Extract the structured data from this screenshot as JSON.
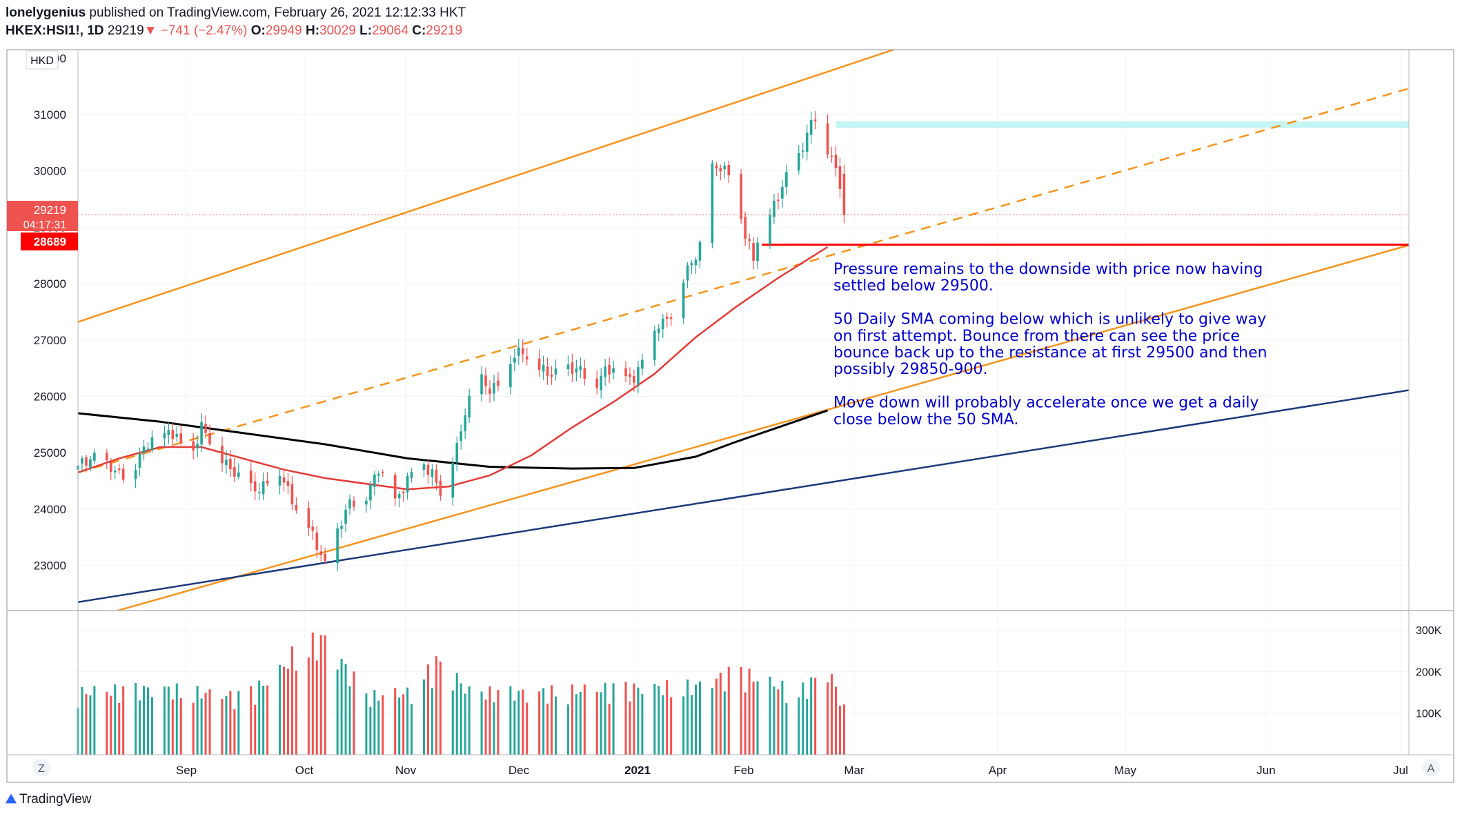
{
  "header": {
    "author": "lonelygenius",
    "published": "published on TradingView.com, February 26, 2021 12:12:33 HKT",
    "symbol": "HKEX:HSI1!, 1D",
    "last": "29219",
    "change_arrow": "▼",
    "change": "−741 (−2.47%)",
    "o_label": "O:",
    "o": "29949",
    "h_label": "H:",
    "h": "30029",
    "l_label": "L:",
    "l": "29064",
    "c_label": "C:",
    "c": "29219"
  },
  "currency": "HKD",
  "price_tags": {
    "last_price": "29219",
    "countdown": "04:17:31",
    "level": "28689"
  },
  "volume_axis_labels": [
    "300K",
    "200K",
    "100K"
  ],
  "footer": {
    "brand": "TradingView",
    "left_button": "Z",
    "right_button": "A"
  },
  "annotation": [
    "Pressure remains to the downside with price now having",
    "settled below 29500.",
    "",
    "50 Daily SMA coming below which is unlikely to give way",
    "on first attempt. Bounce from there can see the price",
    "bounce back up to the resistance at first 29500 and then",
    "possibly 29850-900.",
    "",
    "Move down will probably accelerate once we get a daily",
    "close below the 50 SMA."
  ],
  "colors": {
    "up": "#26a69a",
    "down": "#ef5350",
    "channel": "#f7931a",
    "support": "#1a3a7a",
    "sma50": "#e53935",
    "sma200": "#000000",
    "resistance_zone": "#c4f5f5",
    "annotation": "#0000d0",
    "level_line": "#ff0000"
  },
  "chart_data": {
    "type": "candlestick",
    "title": "HKEX:HSI1!, 1D",
    "y_ticks": [
      23000,
      24000,
      25000,
      26000,
      27000,
      28000,
      29000,
      30000,
      31000
    ],
    "x_ticks": [
      "Sep",
      "Oct",
      "Nov",
      "Dec",
      "2021",
      "Feb",
      "Mar",
      "Apr",
      "May",
      "Jun",
      "Jul"
    ],
    "ylim": [
      22200,
      32150
    ],
    "last_ohlc": {
      "open": 29949,
      "high": 30029,
      "low": 29064,
      "close": 29219
    },
    "close_path": [
      [
        0,
        24700
      ],
      [
        4,
        25000
      ],
      [
        9,
        24600
      ],
      [
        13,
        24700
      ],
      [
        18,
        25200
      ],
      [
        22,
        25400
      ],
      [
        27,
        24900
      ],
      [
        30,
        25500
      ],
      [
        33,
        25000
      ],
      [
        37,
        24800
      ],
      [
        41,
        24300
      ],
      [
        44,
        24400
      ],
      [
        48,
        24700
      ],
      [
        52,
        24200
      ],
      [
        55,
        23800
      ],
      [
        58,
        23300
      ],
      [
        60,
        23050
      ],
      [
        63,
        23600
      ],
      [
        66,
        24050
      ],
      [
        70,
        24300
      ],
      [
        73,
        24650
      ],
      [
        77,
        24200
      ],
      [
        80,
        24500
      ],
      [
        84,
        24800
      ],
      [
        86,
        24700
      ],
      [
        88,
        24300
      ],
      [
        90,
        24600
      ],
      [
        92,
        25100
      ],
      [
        94,
        25800
      ],
      [
        97,
        26300
      ],
      [
        100,
        26100
      ],
      [
        104,
        26500
      ],
      [
        108,
        26800
      ],
      [
        112,
        26500
      ],
      [
        115,
        26300
      ],
      [
        118,
        26600
      ],
      [
        122,
        26400
      ],
      [
        125,
        26200
      ],
      [
        128,
        26500
      ],
      [
        132,
        26300
      ],
      [
        135,
        26400
      ],
      [
        138,
        26700
      ],
      [
        141,
        27300
      ],
      [
        144,
        27500
      ],
      [
        148,
        28200
      ],
      [
        152,
        28900
      ],
      [
        154,
        30000
      ],
      [
        156,
        30000
      ],
      [
        158,
        30000
      ],
      [
        160,
        29600
      ],
      [
        162,
        28800
      ],
      [
        164,
        28400
      ],
      [
        166,
        29100
      ],
      [
        168,
        29300
      ],
      [
        170,
        29500
      ],
      [
        173,
        30000
      ],
      [
        175,
        30300
      ],
      [
        177,
        30700
      ],
      [
        179,
        30900
      ],
      [
        181,
        30500
      ],
      [
        183,
        30300
      ],
      [
        185,
        29800
      ],
      [
        186,
        29219
      ]
    ],
    "volume_path": [
      [
        0,
        150
      ],
      [
        20,
        160
      ],
      [
        40,
        140
      ],
      [
        48,
        190
      ],
      [
        53,
        250
      ],
      [
        60,
        280
      ],
      [
        70,
        140
      ],
      [
        80,
        150
      ],
      [
        88,
        230
      ],
      [
        95,
        150
      ],
      [
        110,
        150
      ],
      [
        130,
        160
      ],
      [
        150,
        165
      ],
      [
        160,
        200
      ],
      [
        175,
        150
      ],
      [
        182,
        210
      ],
      [
        186,
        110
      ]
    ],
    "volume_max": 330,
    "sma50": [
      [
        0,
        24650
      ],
      [
        10,
        24900
      ],
      [
        20,
        25100
      ],
      [
        30,
        25100
      ],
      [
        40,
        24900
      ],
      [
        50,
        24700
      ],
      [
        60,
        24550
      ],
      [
        70,
        24450
      ],
      [
        80,
        24350
      ],
      [
        90,
        24400
      ],
      [
        100,
        24600
      ],
      [
        110,
        24950
      ],
      [
        120,
        25450
      ],
      [
        130,
        25900
      ],
      [
        140,
        26400
      ],
      [
        150,
        27050
      ],
      [
        160,
        27600
      ],
      [
        170,
        28100
      ],
      [
        182,
        28650
      ]
    ],
    "sma200": [
      [
        0,
        25700
      ],
      [
        20,
        25550
      ],
      [
        40,
        25350
      ],
      [
        60,
        25150
      ],
      [
        80,
        24900
      ],
      [
        100,
        24750
      ],
      [
        120,
        24720
      ],
      [
        135,
        24730
      ],
      [
        150,
        24930
      ],
      [
        160,
        25200
      ],
      [
        170,
        25450
      ],
      [
        182,
        25750
      ]
    ],
    "channel_upper": [
      [
        0,
        27320
      ],
      [
        198,
        32150
      ]
    ],
    "channel_mid_dashed": [
      [
        0,
        24650
      ],
      [
        324,
        31480
      ]
    ],
    "channel_lower": [
      [
        0,
        22000
      ],
      [
        324,
        28700
      ]
    ],
    "support_line": [
      [
        0,
        22350
      ],
      [
        324,
        26120
      ]
    ],
    "resistance_zone": [
      30760,
      30880
    ],
    "horizontal_level": 28689,
    "level_start_x": 166
  }
}
